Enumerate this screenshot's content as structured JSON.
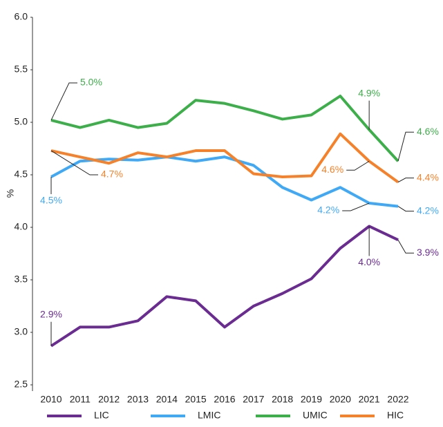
{
  "chart_data": {
    "type": "line",
    "y_label": "%",
    "categories": [
      "2010",
      "2011",
      "2012",
      "2013",
      "2014",
      "2015",
      "2016",
      "2017",
      "2018",
      "2019",
      "2020",
      "2021",
      "2022"
    ],
    "ylim": [
      2.5,
      6.0
    ],
    "yticks": [
      2.5,
      {
        "value": 3,
        "label": "3.0"
      },
      3.5,
      {
        "value": 4,
        "label": "4.0"
      },
      4.5,
      {
        "value": 5,
        "label": "5.0"
      },
      5.5,
      {
        "value": 6,
        "label": "6.0"
      }
    ],
    "series": [
      {
        "name": "LIC",
        "color": "#6a2c91",
        "values": [
          2.87,
          3.05,
          3.05,
          3.11,
          3.34,
          3.3,
          3.05,
          3.25,
          3.37,
          3.51,
          3.8,
          4.01,
          3.88
        ],
        "value_labels": [
          "2.9%",
          null,
          null,
          null,
          null,
          null,
          null,
          null,
          null,
          null,
          null,
          "4.0%",
          "3.9%"
        ]
      },
      {
        "name": "LMIC",
        "color": "#3fa9f5",
        "values": [
          4.48,
          4.63,
          4.65,
          4.64,
          4.67,
          4.63,
          4.67,
          4.59,
          4.38,
          4.26,
          4.38,
          4.23,
          4.2
        ],
        "value_labels": [
          "4.5%",
          null,
          null,
          null,
          null,
          null,
          null,
          null,
          null,
          null,
          null,
          "4.2%",
          "4.2%"
        ]
      },
      {
        "name": "UMIC",
        "color": "#3daf4a",
        "values": [
          5.02,
          4.95,
          5.02,
          4.95,
          4.99,
          5.21,
          5.18,
          5.11,
          5.03,
          5.07,
          5.25,
          4.93,
          4.63
        ],
        "value_labels": [
          "5.0%",
          null,
          null,
          null,
          null,
          null,
          null,
          null,
          null,
          null,
          null,
          "4.9%",
          "4.6%"
        ]
      },
      {
        "name": "HIC",
        "color": "#f5822a",
        "values": [
          4.73,
          4.67,
          4.61,
          4.71,
          4.67,
          4.73,
          4.73,
          4.51,
          4.48,
          4.49,
          4.89,
          4.63,
          4.43
        ],
        "value_labels": [
          "4.7%",
          null,
          null,
          null,
          null,
          null,
          null,
          null,
          null,
          null,
          null,
          "4.6%",
          "4.4%"
        ]
      }
    ]
  }
}
